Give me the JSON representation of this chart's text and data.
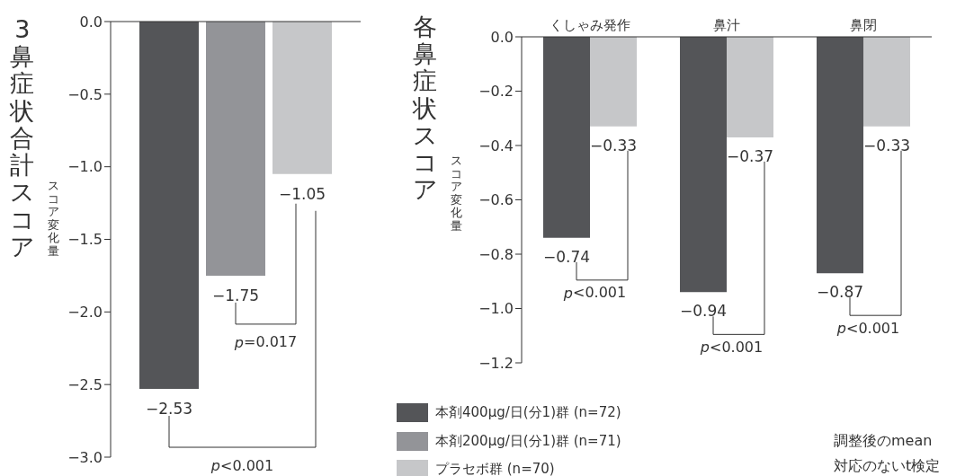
{
  "chart_data": [
    {
      "type": "bar",
      "title": "3鼻症状合計スコア",
      "ylabel": "スコア変化量",
      "categories": [
        null
      ],
      "ylim": [
        -3,
        0
      ],
      "yticks": [
        {
          "value": 0,
          "label": "0.0"
        },
        {
          "value": -0.5,
          "label": "−0.5"
        },
        {
          "value": -1,
          "label": "−1.0"
        },
        {
          "value": -1.5,
          "label": "−1.5"
        },
        {
          "value": -2,
          "label": "−2.0"
        },
        {
          "value": -2.5,
          "label": "−2.5"
        },
        {
          "value": -3,
          "label": "−3.0"
        }
      ],
      "series": [
        {
          "name": "本剤400μg/日(分1)群 (n=72)",
          "color": "#545558",
          "values": [
            -2.53
          ],
          "value_labels": [
            "−2.53"
          ]
        },
        {
          "name": "本剤200μg/日(分1)群 (n=71)",
          "color": "#939498",
          "values": [
            -1.75
          ],
          "value_labels": [
            "−1.75"
          ]
        },
        {
          "name": "プラセボ群 (n=70)",
          "color": "#c6c7c9",
          "values": [
            -1.05
          ],
          "value_labels": [
            "−1.05"
          ]
        }
      ],
      "legend": "bottom",
      "grid": false,
      "annotations": [
        "p=0.017",
        "p<0.001"
      ]
    },
    {
      "type": "bar",
      "title": "各鼻症状スコア",
      "ylabel": "スコア変化量",
      "categories": [
        "くしゃみ発作",
        "鼻汁",
        "鼻閉"
      ],
      "ylim": [
        -1.2,
        0
      ],
      "yticks": [
        {
          "value": 0,
          "label": "0.0"
        },
        {
          "value": -0.2,
          "label": "−0.2"
        },
        {
          "value": -0.4,
          "label": "−0.4"
        },
        {
          "value": -0.6,
          "label": "−0.6"
        },
        {
          "value": -0.8,
          "label": "−0.8"
        },
        {
          "value": -1,
          "label": "−1.0"
        },
        {
          "value": -1.2,
          "label": "−1.2"
        }
      ],
      "series": [
        {
          "color": "#545558",
          "values": [
            -0.74,
            -0.94,
            -0.87
          ],
          "value_labels": [
            "−0.74",
            "−0.94",
            "−0.87"
          ]
        },
        {
          "color": "#c6c7c9",
          "values": [
            -0.33,
            -0.37,
            -0.33
          ],
          "value_labels": [
            "−0.33",
            "−0.37",
            "−0.33"
          ]
        }
      ],
      "grid": false,
      "annotations": [
        "p<0.001",
        "p<0.001",
        "p<0.001",
        "調整後のmean",
        "対応のないt検定"
      ]
    }
  ]
}
